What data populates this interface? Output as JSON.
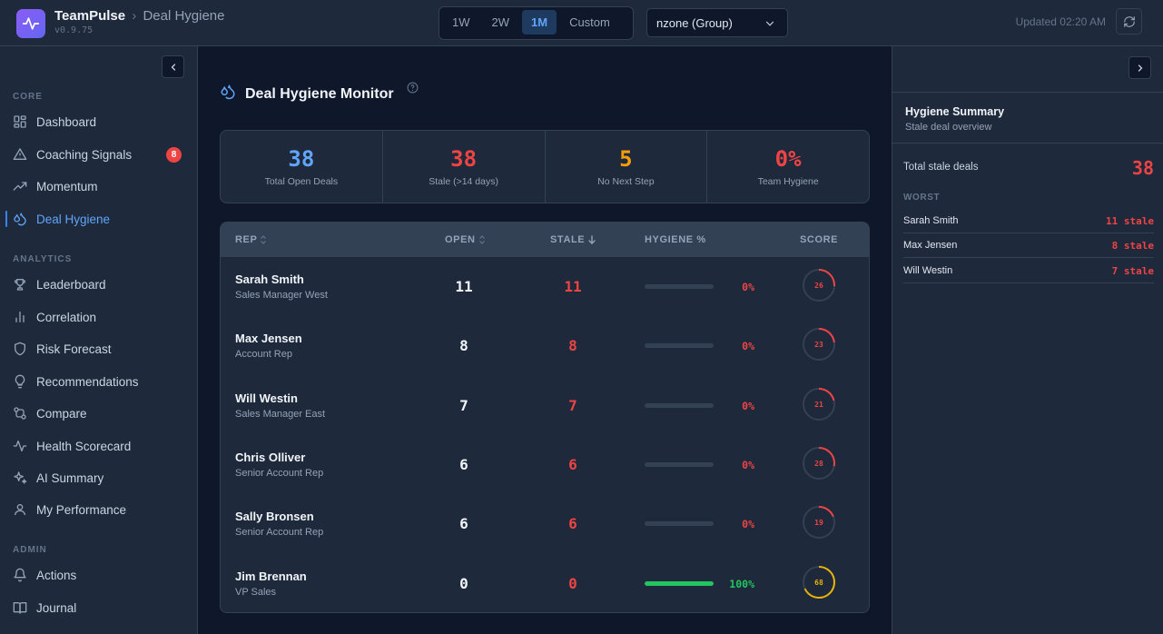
{
  "header": {
    "app_name": "TeamPulse",
    "breadcrumb_sep": "›",
    "page": "Deal Hygiene",
    "version": "v0.9.75",
    "ranges": [
      "1W",
      "2W",
      "1M",
      "Custom"
    ],
    "active_range": "1M",
    "group_value": "nzone (Group)",
    "updated": "Updated 02:20 AM"
  },
  "sidebar": {
    "sections": {
      "core": "CORE",
      "analytics": "ANALYTICS",
      "admin": "ADMIN"
    },
    "core_items": [
      {
        "label": "Dashboard",
        "icon": "dashboard-icon"
      },
      {
        "label": "Coaching Signals",
        "icon": "warning-triangle-icon",
        "badge": "8"
      },
      {
        "label": "Momentum",
        "icon": "trend-up-icon"
      },
      {
        "label": "Deal Hygiene",
        "icon": "droplets-icon",
        "active": true
      }
    ],
    "analytics_items": [
      {
        "label": "Leaderboard",
        "icon": "trophy-icon"
      },
      {
        "label": "Correlation",
        "icon": "bar-chart-icon"
      },
      {
        "label": "Risk Forecast",
        "icon": "shield-icon"
      },
      {
        "label": "Recommendations",
        "icon": "lightbulb-icon"
      },
      {
        "label": "Compare",
        "icon": "git-compare-icon"
      },
      {
        "label": "Health Scorecard",
        "icon": "activity-icon"
      },
      {
        "label": "AI Summary",
        "icon": "sparkles-icon"
      },
      {
        "label": "My Performance",
        "icon": "user-icon"
      }
    ],
    "admin_items": [
      {
        "label": "Actions",
        "icon": "bell-icon"
      },
      {
        "label": "Journal",
        "icon": "book-icon"
      }
    ]
  },
  "main": {
    "title": "Deal Hygiene Monitor",
    "stats": [
      {
        "value": "38",
        "label": "Total Open Deals",
        "color": "#60a5fa"
      },
      {
        "value": "38",
        "label": "Stale (>14 days)",
        "color": "#ef4444"
      },
      {
        "value": "5",
        "label": "No Next Step",
        "color": "#f59e0b"
      },
      {
        "value": "0%",
        "label": "Team Hygiene",
        "color": "#ef4444"
      }
    ],
    "table": {
      "headers": {
        "rep": "REP",
        "open": "OPEN",
        "stale": "STALE",
        "hygiene": "HYGIENE %",
        "score": "SCORE"
      },
      "rows": [
        {
          "name": "Sarah Smith",
          "role": "Sales Manager West",
          "open": "11",
          "stale": "11",
          "hygiene": "0%",
          "hygiene_frac": 0,
          "score": "26",
          "score_frac": 0.26
        },
        {
          "name": "Max Jensen",
          "role": "Account Rep",
          "open": "8",
          "stale": "8",
          "hygiene": "0%",
          "hygiene_frac": 0,
          "score": "23",
          "score_frac": 0.23
        },
        {
          "name": "Will Westin",
          "role": "Sales Manager East",
          "open": "7",
          "stale": "7",
          "hygiene": "0%",
          "hygiene_frac": 0,
          "score": "21",
          "score_frac": 0.21
        },
        {
          "name": "Chris Olliver",
          "role": "Senior Account Rep",
          "open": "6",
          "stale": "6",
          "hygiene": "0%",
          "hygiene_frac": 0,
          "score": "28",
          "score_frac": 0.28
        },
        {
          "name": "Sally Bronsen",
          "role": "Senior Account Rep",
          "open": "6",
          "stale": "6",
          "hygiene": "0%",
          "hygiene_frac": 0,
          "score": "19",
          "score_frac": 0.19
        },
        {
          "name": "Jim Brennan",
          "role": "VP Sales",
          "open": "0",
          "stale": "0",
          "hygiene": "100%",
          "hygiene_frac": 1,
          "score": "68",
          "score_frac": 0.68
        }
      ]
    }
  },
  "summary": {
    "title": "Hygiene Summary",
    "subtitle": "Stale deal overview",
    "total_label": "Total stale deals",
    "total_value": "38",
    "worst_label": "WORST",
    "worst": [
      {
        "name": "Sarah Smith",
        "value": "11 stale"
      },
      {
        "name": "Max Jensen",
        "value": "8 stale"
      },
      {
        "name": "Will Westin",
        "value": "7 stale"
      }
    ]
  },
  "colors": {
    "accent": "#3b82f6",
    "danger": "#ef4444",
    "warning": "#f59e0b",
    "success": "#22c55e",
    "score_low": "#ef4444",
    "score_mid": "#eab308"
  }
}
